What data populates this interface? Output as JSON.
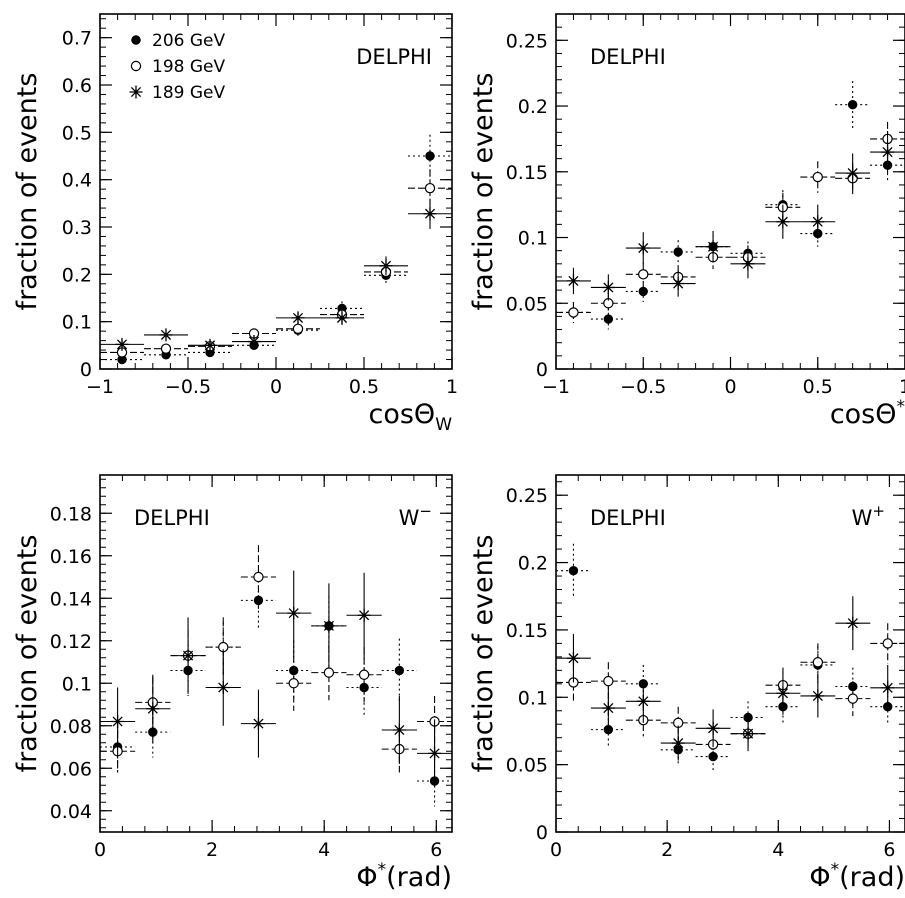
{
  "chart_data": [
    {
      "type": "scatter",
      "xlabel": "cosΘ",
      "xlabel_sub": "W",
      "xlabel_sup": "",
      "ylabel": "fraction of events",
      "xlim": [
        -1,
        1
      ],
      "ylim": [
        0,
        0.75
      ],
      "xticks": [
        -1,
        -0.5,
        0,
        0.5,
        1
      ],
      "xtick_labels": [
        "−1",
        "−0.5",
        "0",
        "0.5",
        "1"
      ],
      "yticks": [
        0,
        0.1,
        0.2,
        0.3,
        0.4,
        0.5,
        0.6,
        0.7
      ],
      "ytick_labels": [
        "0",
        "0.1",
        "0.2",
        "0.3",
        "0.4",
        "0.5",
        "0.6",
        "0.7"
      ],
      "xerr": 0.125,
      "annotations": [
        {
          "text": "DELPHI",
          "pos": "top-right"
        }
      ],
      "legend": {
        "placement": "top-left",
        "entries": [
          "206 GeV",
          "198 GeV",
          "189 GeV"
        ]
      },
      "series": [
        {
          "name": "206 GeV",
          "marker": "filled-circle",
          "x": [
            -0.875,
            -0.625,
            -0.375,
            -0.125,
            0.125,
            0.375,
            0.625,
            0.875
          ],
          "y": [
            0.02,
            0.03,
            0.035,
            0.05,
            0.082,
            0.128,
            0.198,
            0.45
          ],
          "yerr": [
            0.008,
            0.008,
            0.008,
            0.009,
            0.012,
            0.015,
            0.02,
            0.045
          ]
        },
        {
          "name": "198 GeV",
          "marker": "open-circle",
          "x": [
            -0.875,
            -0.625,
            -0.375,
            -0.125,
            0.125,
            0.375,
            0.625,
            0.875
          ],
          "y": [
            0.035,
            0.043,
            0.048,
            0.075,
            0.085,
            0.115,
            0.205,
            0.382
          ],
          "yerr": [
            0.008,
            0.008,
            0.008,
            0.009,
            0.012,
            0.015,
            0.02,
            0.04
          ]
        },
        {
          "name": "189 GeV",
          "marker": "star",
          "x": [
            -0.875,
            -0.625,
            -0.375,
            -0.125,
            0.125,
            0.375,
            0.625,
            0.875
          ],
          "y": [
            0.052,
            0.072,
            0.05,
            0.058,
            0.108,
            0.108,
            0.218,
            0.328
          ],
          "yerr": [
            0.008,
            0.008,
            0.008,
            0.009,
            0.012,
            0.015,
            0.02,
            0.032
          ]
        }
      ]
    },
    {
      "type": "scatter",
      "xlabel": "cosΘ",
      "xlabel_sub": "",
      "xlabel_sup": "*",
      "ylabel": "fraction of events",
      "xlim": [
        -1,
        1
      ],
      "ylim": [
        0,
        0.27
      ],
      "xticks": [
        -1,
        -0.5,
        0,
        0.5,
        1
      ],
      "xtick_labels": [
        "−1",
        "−0.5",
        "0",
        "0.5",
        "1"
      ],
      "yticks": [
        0,
        0.05,
        0.1,
        0.15,
        0.2,
        0.25
      ],
      "ytick_labels": [
        "0",
        "0.05",
        "0.1",
        "0.15",
        "0.2",
        "0.25"
      ],
      "xerr": 0.1,
      "annotations": [
        {
          "text": "DELPHI",
          "pos": "top-left"
        }
      ],
      "series": [
        {
          "name": "206 GeV",
          "marker": "filled-circle",
          "x": [
            -0.9,
            -0.7,
            -0.5,
            -0.3,
            -0.1,
            0.1,
            0.3,
            0.5,
            0.7,
            0.9
          ],
          "y": [
            0.043,
            0.038,
            0.059,
            0.089,
            0.093,
            0.088,
            0.125,
            0.103,
            0.201,
            0.155
          ],
          "yerr": [
            0.008,
            0.008,
            0.008,
            0.009,
            0.009,
            0.009,
            0.011,
            0.01,
            0.018,
            0.013
          ]
        },
        {
          "name": "198 GeV",
          "marker": "open-circle",
          "x": [
            -0.9,
            -0.7,
            -0.5,
            -0.3,
            -0.1,
            0.1,
            0.3,
            0.5,
            0.7,
            0.9
          ],
          "y": [
            0.043,
            0.05,
            0.072,
            0.07,
            0.085,
            0.085,
            0.123,
            0.146,
            0.145,
            0.175
          ],
          "yerr": [
            0.008,
            0.008,
            0.009,
            0.009,
            0.009,
            0.009,
            0.011,
            0.012,
            0.012,
            0.013
          ]
        },
        {
          "name": "189 GeV",
          "marker": "star",
          "x": [
            -0.9,
            -0.7,
            -0.5,
            -0.3,
            -0.1,
            0.1,
            0.3,
            0.5,
            0.7,
            0.9
          ],
          "y": [
            0.067,
            0.062,
            0.092,
            0.065,
            0.093,
            0.08,
            0.112,
            0.112,
            0.149,
            0.165
          ],
          "yerr": [
            0.01,
            0.01,
            0.012,
            0.01,
            0.012,
            0.011,
            0.013,
            0.013,
            0.015,
            0.016
          ]
        }
      ]
    },
    {
      "type": "scatter",
      "xlabel": "Φ",
      "xlabel_sub": "",
      "xlabel_sup": "*",
      "xlabel_suffix": "(rad)",
      "ylabel": "fraction of events",
      "xlim": [
        0,
        6.28
      ],
      "ylim": [
        0.03,
        0.198
      ],
      "xticks": [
        0,
        2,
        4,
        6
      ],
      "xtick_labels": [
        "0",
        "2",
        "4",
        "6"
      ],
      "yticks": [
        0.04,
        0.06,
        0.08,
        0.1,
        0.12,
        0.14,
        0.16,
        0.18
      ],
      "ytick_labels": [
        "0.04",
        "0.06",
        "0.08",
        "0.1",
        "0.12",
        "0.14",
        "0.16",
        "0.18"
      ],
      "xerr": 0.314,
      "annotations": [
        {
          "text": "DELPHI",
          "pos": "top-left"
        },
        {
          "text": "W",
          "sup": "−",
          "pos": "top-right"
        }
      ],
      "series": [
        {
          "name": "206 GeV",
          "marker": "filled-circle",
          "x": [
            0.314,
            0.942,
            1.571,
            2.199,
            2.827,
            3.456,
            4.084,
            4.712,
            5.341,
            5.969
          ],
          "y": [
            0.07,
            0.077,
            0.106,
            0.117,
            0.139,
            0.106,
            0.127,
            0.098,
            0.106,
            0.054
          ],
          "yerr": [
            0.012,
            0.012,
            0.012,
            0.014,
            0.014,
            0.014,
            0.014,
            0.014,
            0.015,
            0.012
          ]
        },
        {
          "name": "198 GeV",
          "marker": "open-circle",
          "x": [
            0.314,
            0.942,
            1.571,
            2.199,
            2.827,
            3.456,
            4.084,
            4.712,
            5.341,
            5.969
          ],
          "y": [
            0.068,
            0.091,
            0.113,
            0.117,
            0.15,
            0.1,
            0.105,
            0.104,
            0.069,
            0.082
          ],
          "yerr": [
            0.01,
            0.012,
            0.012,
            0.013,
            0.015,
            0.013,
            0.013,
            0.013,
            0.011,
            0.012
          ]
        },
        {
          "name": "189 GeV",
          "marker": "star",
          "x": [
            0.314,
            0.942,
            1.571,
            2.199,
            2.827,
            3.456,
            4.084,
            4.712,
            5.341,
            5.969
          ],
          "y": [
            0.082,
            0.088,
            0.113,
            0.098,
            0.081,
            0.133,
            0.127,
            0.132,
            0.078,
            0.067
          ],
          "yerr": [
            0.016,
            0.016,
            0.018,
            0.018,
            0.016,
            0.02,
            0.02,
            0.02,
            0.016,
            0.016
          ]
        }
      ]
    },
    {
      "type": "scatter",
      "xlabel": "Φ",
      "xlabel_sub": "",
      "xlabel_sup": "*",
      "xlabel_suffix": "(rad)",
      "ylabel": "fraction of events",
      "xlim": [
        0,
        6.28
      ],
      "ylim": [
        0,
        0.265
      ],
      "xticks": [
        0,
        2,
        4,
        6
      ],
      "xtick_labels": [
        "0",
        "2",
        "4",
        "6"
      ],
      "yticks": [
        0,
        0.05,
        0.1,
        0.15,
        0.2,
        0.25
      ],
      "ytick_labels": [
        "0",
        "0.05",
        "0.1",
        "0.15",
        "0.2",
        "0.25"
      ],
      "xerr": 0.314,
      "annotations": [
        {
          "text": "DELPHI",
          "pos": "top-left"
        },
        {
          "text": "W",
          "sup": "+",
          "pos": "top-right"
        }
      ],
      "series": [
        {
          "name": "206 GeV",
          "marker": "filled-circle",
          "x": [
            0.314,
            0.942,
            1.571,
            2.199,
            2.827,
            3.456,
            4.084,
            4.712,
            5.341,
            5.969
          ],
          "y": [
            0.194,
            0.076,
            0.11,
            0.061,
            0.056,
            0.085,
            0.093,
            0.124,
            0.108,
            0.093
          ],
          "yerr": [
            0.02,
            0.012,
            0.014,
            0.01,
            0.01,
            0.012,
            0.012,
            0.014,
            0.014,
            0.012
          ]
        },
        {
          "name": "198 GeV",
          "marker": "open-circle",
          "x": [
            0.314,
            0.942,
            1.571,
            2.199,
            2.827,
            3.456,
            4.084,
            4.712,
            5.341,
            5.969
          ],
          "y": [
            0.111,
            0.112,
            0.083,
            0.081,
            0.065,
            0.073,
            0.109,
            0.126,
            0.099,
            0.14
          ],
          "yerr": [
            0.014,
            0.014,
            0.012,
            0.012,
            0.01,
            0.011,
            0.013,
            0.014,
            0.013,
            0.015
          ]
        },
        {
          "name": "189 GeV",
          "marker": "star",
          "x": [
            0.314,
            0.942,
            1.571,
            2.199,
            2.827,
            3.456,
            4.084,
            4.712,
            5.341,
            5.969
          ],
          "y": [
            0.129,
            0.092,
            0.097,
            0.066,
            0.077,
            0.073,
            0.103,
            0.101,
            0.155,
            0.107
          ],
          "yerr": [
            0.018,
            0.016,
            0.016,
            0.013,
            0.014,
            0.013,
            0.016,
            0.016,
            0.02,
            0.017
          ]
        }
      ]
    }
  ]
}
